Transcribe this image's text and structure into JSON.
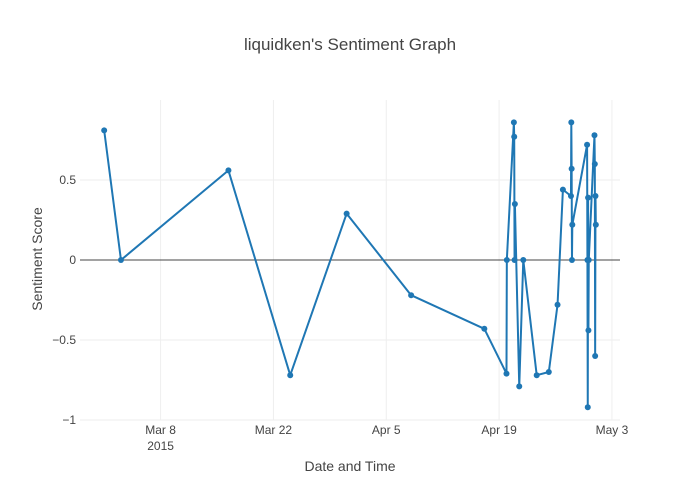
{
  "chart_data": {
    "type": "line",
    "title": "liquidken's Sentiment Graph",
    "xlabel": "Date and Time",
    "ylabel": "Sentiment Score",
    "x_type": "date",
    "xlim": [
      "2015-02-26",
      "2015-05-04"
    ],
    "ylim": [
      -1.0,
      1.0
    ],
    "grid": true,
    "zeroline": true,
    "x_ticks": [
      {
        "value": "2015-03-08",
        "label": "Mar 8",
        "sublabel": "2015"
      },
      {
        "value": "2015-03-22",
        "label": "Mar 22",
        "sublabel": ""
      },
      {
        "value": "2015-04-05",
        "label": "Apr 5",
        "sublabel": ""
      },
      {
        "value": "2015-04-19",
        "label": "Apr 19",
        "sublabel": ""
      },
      {
        "value": "2015-05-03",
        "label": "May 3",
        "sublabel": ""
      }
    ],
    "y_ticks": [
      {
        "value": 0.5,
        "label": "0.5"
      },
      {
        "value": 0,
        "label": "0"
      },
      {
        "value": -0.5,
        "label": "−0.5"
      },
      {
        "value": -1,
        "label": "−1"
      }
    ],
    "colors": {
      "series": "#1f77b4",
      "zeroline": "#444444",
      "grid": "#eeeeee"
    },
    "series": [
      {
        "points": [
          {
            "x": "2015-03-01 00:00",
            "y": 0.81
          },
          {
            "x": "2015-03-03 02:00",
            "y": 0.0
          },
          {
            "x": "2015-03-16 10:00",
            "y": 0.56
          },
          {
            "x": "2015-03-24 02:00",
            "y": -0.72
          },
          {
            "x": "2015-03-31 02:00",
            "y": 0.29
          },
          {
            "x": "2015-04-08 02:00",
            "y": -0.22
          },
          {
            "x": "2015-04-17 04:00",
            "y": -0.43
          },
          {
            "x": "2015-04-19 22:00",
            "y": -0.71
          },
          {
            "x": "2015-04-19 23:00",
            "y": 0.0
          },
          {
            "x": "2015-04-20 20:00",
            "y": 0.86
          },
          {
            "x": "2015-04-20 21:00",
            "y": 0.77
          },
          {
            "x": "2015-04-20 22:00",
            "y": 0.0
          },
          {
            "x": "2015-04-20 23:00",
            "y": 0.35
          },
          {
            "x": "2015-04-21 12:00",
            "y": -0.79
          },
          {
            "x": "2015-04-22 00:00",
            "y": 0.0
          },
          {
            "x": "2015-04-23 16:00",
            "y": -0.72
          },
          {
            "x": "2015-04-25 04:00",
            "y": -0.7
          },
          {
            "x": "2015-04-26 06:00",
            "y": -0.28
          },
          {
            "x": "2015-04-26 22:00",
            "y": 0.44
          },
          {
            "x": "2015-04-27 22:00",
            "y": 0.4
          },
          {
            "x": "2015-04-27 23:00",
            "y": 0.86
          },
          {
            "x": "2015-04-28 00:00",
            "y": 0.57
          },
          {
            "x": "2015-04-28 01:00",
            "y": 0.0
          },
          {
            "x": "2015-04-28 02:00",
            "y": 0.22
          },
          {
            "x": "2015-04-29 22:00",
            "y": 0.72
          },
          {
            "x": "2015-04-29 23:00",
            "y": 0.0
          },
          {
            "x": "2015-04-30 00:00",
            "y": -0.92
          },
          {
            "x": "2015-04-30 01:00",
            "y": 0.39
          },
          {
            "x": "2015-04-30 02:00",
            "y": -0.44
          },
          {
            "x": "2015-04-30 03:00",
            "y": 0.0
          },
          {
            "x": "2015-04-30 20:00",
            "y": 0.78
          },
          {
            "x": "2015-04-30 21:00",
            "y": 0.6
          },
          {
            "x": "2015-04-30 22:00",
            "y": -0.6
          },
          {
            "x": "2015-04-30 23:00",
            "y": 0.4
          },
          {
            "x": "2015-05-01 00:00",
            "y": 0.22
          }
        ]
      }
    ]
  }
}
